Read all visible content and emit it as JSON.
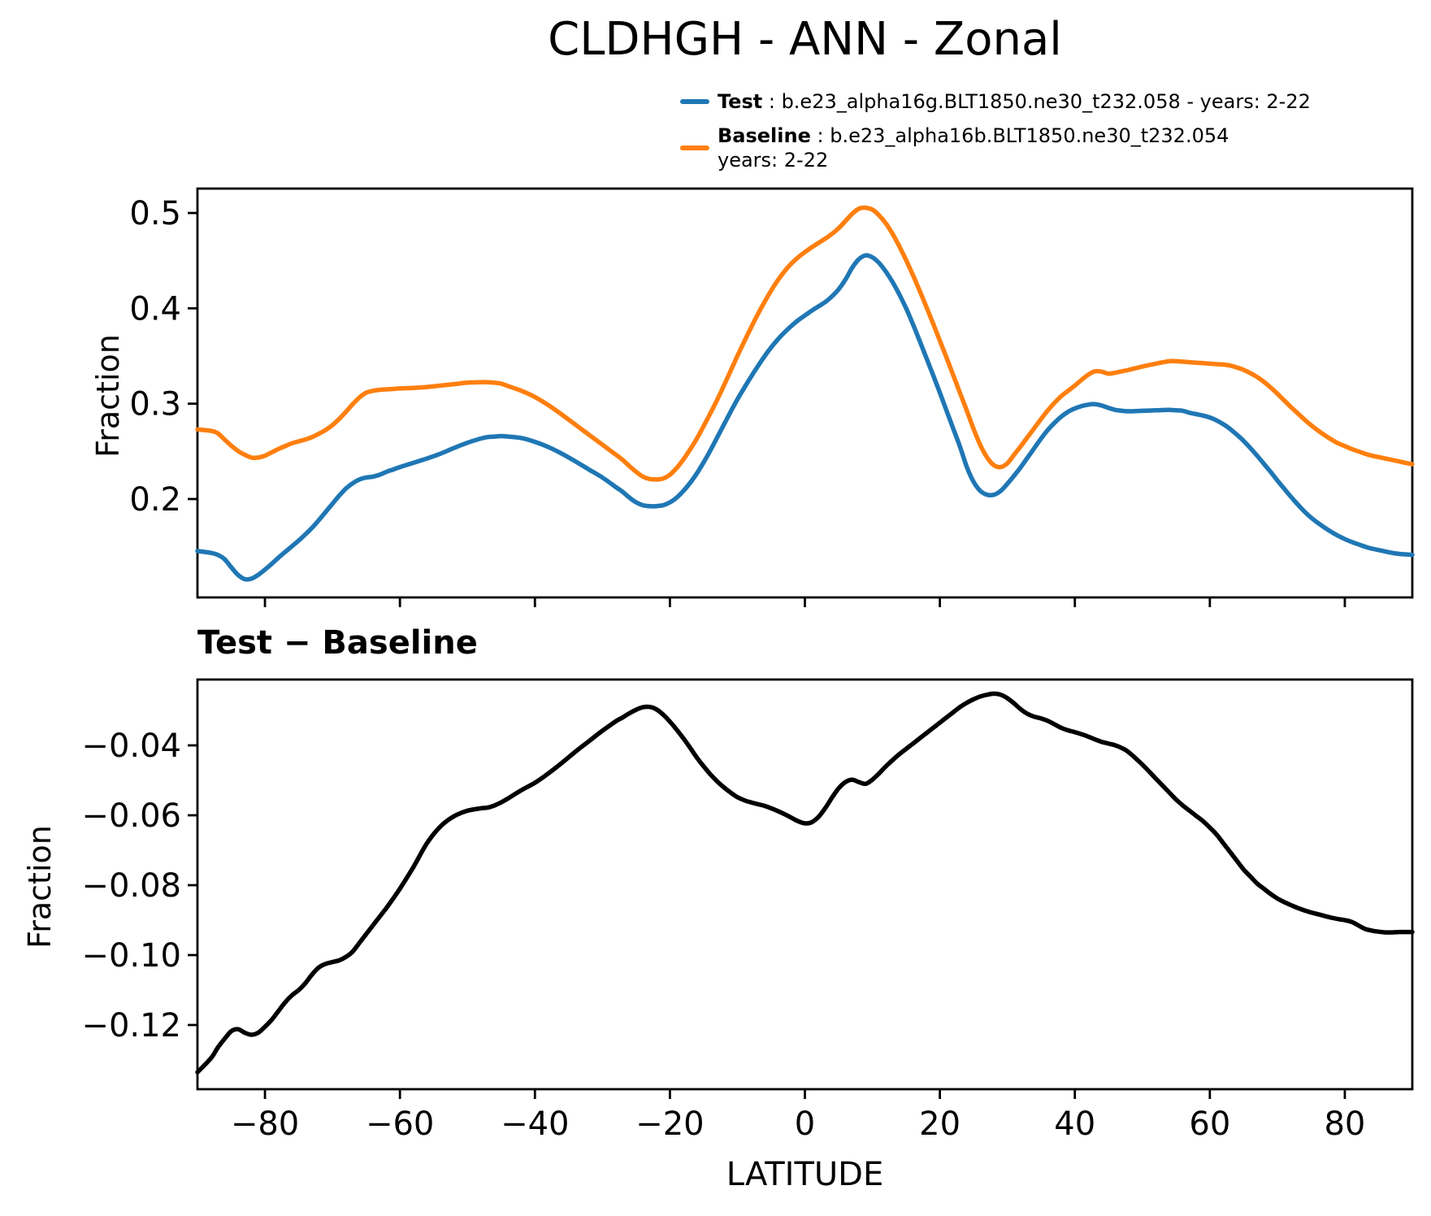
{
  "title": "CLDHGH - ANN - Zonal",
  "legend": {
    "items": [
      {
        "label": "Test",
        "desc": " : b.e23_alpha16g.BLT1850.ne30_t232.058 - years: 2-22",
        "desc2": "",
        "color": "#1f77b4"
      },
      {
        "label": "Baseline",
        "desc": " : b.e23_alpha16b.BLT1850.ne30_t232.054",
        "desc2": "years: 2-22",
        "color": "#ff7f0e"
      }
    ]
  },
  "chart_data": [
    {
      "type": "line",
      "title": "CLDHGH - ANN - Zonal",
      "xlabel": "",
      "ylabel": "Fraction",
      "xlim": [
        -90,
        90
      ],
      "ylim": [
        0.0968,
        0.5256
      ],
      "grid": false,
      "legend_position": "above-right-outside",
      "xtick_values": [
        -80,
        -60,
        -40,
        -20,
        0,
        20,
        40,
        60,
        80
      ],
      "xtick_labels": [
        "−80",
        "−60",
        "−40",
        "−20",
        "0",
        "20",
        "40",
        "60",
        "80"
      ],
      "xtick_labels_shown": false,
      "ytick_values": [
        0.5,
        0.4,
        0.3,
        0.2
      ],
      "ytick_labels": [
        "0.5",
        "0.4",
        "0.3",
        "0.2"
      ],
      "x": [
        -90,
        -88,
        -87,
        -86,
        -85,
        -84,
        -83,
        -82,
        -81,
        -80,
        -79,
        -78,
        -77,
        -76,
        -75,
        -74,
        -73,
        -72,
        -71,
        -70,
        -69,
        -68,
        -67,
        -66,
        -65,
        -64,
        -63,
        -62,
        -61,
        -60,
        -58,
        -56,
        -54,
        -52,
        -50,
        -48,
        -47,
        -46,
        -45,
        -44,
        -42,
        -40,
        -38,
        -36,
        -34,
        -32,
        -30,
        -28,
        -27,
        -26,
        -25,
        -24,
        -23,
        -22,
        -21,
        -20,
        -19,
        -18,
        -17,
        -16,
        -15,
        -14,
        -13,
        -12,
        -11,
        -10,
        -9,
        -8,
        -7,
        -6,
        -5,
        -4,
        -3,
        -2,
        -1,
        0,
        1,
        2,
        3,
        4,
        5,
        6,
        7,
        8,
        9,
        10,
        11,
        12,
        13,
        14,
        15,
        16,
        17,
        18,
        19,
        20,
        21,
        22,
        23,
        24,
        25,
        26,
        27,
        28,
        29,
        30,
        31,
        32,
        33,
        34,
        35,
        36,
        37,
        38,
        39,
        40,
        41,
        42,
        43,
        44,
        45,
        46,
        47,
        48,
        50,
        52,
        54,
        55,
        56,
        57,
        58,
        59,
        60,
        61,
        62,
        63,
        64,
        65,
        66,
        67,
        68,
        69,
        70,
        71,
        72,
        73,
        74,
        75,
        76,
        77,
        78,
        79,
        80,
        81,
        82,
        83,
        84,
        85,
        86,
        87,
        88,
        89,
        90
      ],
      "series": [
        {
          "name": "Test",
          "color": "#1f77b4",
          "values": [
            0.1455,
            0.1435,
            0.1415,
            0.137,
            0.1285,
            0.1205,
            0.116,
            0.1165,
            0.1205,
            0.126,
            0.132,
            0.1385,
            0.1445,
            0.1505,
            0.1565,
            0.163,
            0.17,
            0.178,
            0.1865,
            0.195,
            0.2035,
            0.211,
            0.2165,
            0.2205,
            0.2225,
            0.2235,
            0.2255,
            0.2285,
            0.231,
            0.2335,
            0.238,
            0.2425,
            0.2475,
            0.2535,
            0.259,
            0.2635,
            0.265,
            0.2655,
            0.266,
            0.2655,
            0.264,
            0.26,
            0.2545,
            0.2475,
            0.2395,
            0.231,
            0.2225,
            0.2125,
            0.2075,
            0.2015,
            0.1965,
            0.1935,
            0.1925,
            0.1925,
            0.1935,
            0.1965,
            0.2015,
            0.2085,
            0.217,
            0.227,
            0.2385,
            0.251,
            0.2645,
            0.278,
            0.2915,
            0.3045,
            0.3165,
            0.328,
            0.339,
            0.3495,
            0.359,
            0.3675,
            0.375,
            0.3815,
            0.3875,
            0.3925,
            0.3975,
            0.402,
            0.4065,
            0.4125,
            0.42,
            0.43,
            0.4425,
            0.4515,
            0.4555,
            0.4535,
            0.4475,
            0.4385,
            0.4275,
            0.4145,
            0.4,
            0.3835,
            0.366,
            0.348,
            0.33,
            0.3115,
            0.2925,
            0.2735,
            0.2545,
            0.2335,
            0.218,
            0.2085,
            0.2045,
            0.2045,
            0.2085,
            0.216,
            0.2245,
            0.2335,
            0.2435,
            0.2535,
            0.2635,
            0.2725,
            0.28,
            0.2865,
            0.2915,
            0.295,
            0.2975,
            0.299,
            0.2995,
            0.298,
            0.2955,
            0.2935,
            0.2925,
            0.292,
            0.2925,
            0.293,
            0.2935,
            0.293,
            0.2925,
            0.2905,
            0.289,
            0.2875,
            0.2855,
            0.2825,
            0.2785,
            0.2735,
            0.2675,
            0.261,
            0.2535,
            0.2455,
            0.237,
            0.2285,
            0.2195,
            0.211,
            0.2025,
            0.1945,
            0.187,
            0.1805,
            0.175,
            0.17,
            0.1655,
            0.1615,
            0.158,
            0.155,
            0.1525,
            0.15,
            0.148,
            0.1465,
            0.145,
            0.1435,
            0.1425,
            0.142,
            0.1415
          ]
        },
        {
          "name": "Baseline",
          "color": "#ff7f0e",
          "values": [
            0.273,
            0.2715,
            0.269,
            0.2625,
            0.256,
            0.2505,
            0.2465,
            0.2435,
            0.2435,
            0.2455,
            0.249,
            0.2525,
            0.2555,
            0.2585,
            0.2605,
            0.2625,
            0.265,
            0.2685,
            0.2725,
            0.2775,
            0.284,
            0.2915,
            0.2995,
            0.3065,
            0.3115,
            0.3135,
            0.3145,
            0.315,
            0.3155,
            0.316,
            0.3165,
            0.3175,
            0.319,
            0.3205,
            0.322,
            0.3225,
            0.3225,
            0.322,
            0.321,
            0.3185,
            0.3135,
            0.307,
            0.2985,
            0.2885,
            0.278,
            0.2675,
            0.257,
            0.2465,
            0.241,
            0.2345,
            0.2285,
            0.2235,
            0.221,
            0.2205,
            0.2215,
            0.2255,
            0.2325,
            0.2415,
            0.252,
            0.2635,
            0.2765,
            0.29,
            0.304,
            0.319,
            0.3345,
            0.35,
            0.365,
            0.3795,
            0.3935,
            0.4065,
            0.4185,
            0.4295,
            0.439,
            0.447,
            0.4535,
            0.459,
            0.464,
            0.4685,
            0.473,
            0.478,
            0.484,
            0.4915,
            0.499,
            0.5045,
            0.5055,
            0.5035,
            0.4975,
            0.489,
            0.478,
            0.465,
            0.4505,
            0.435,
            0.4185,
            0.4015,
            0.384,
            0.366,
            0.348,
            0.3295,
            0.311,
            0.2925,
            0.2735,
            0.2565,
            0.2435,
            0.2355,
            0.2335,
            0.2375,
            0.2465,
            0.2555,
            0.265,
            0.2745,
            0.284,
            0.293,
            0.301,
            0.308,
            0.3135,
            0.319,
            0.325,
            0.3305,
            0.334,
            0.3335,
            0.3315,
            0.3325,
            0.334,
            0.3355,
            0.339,
            0.342,
            0.3445,
            0.3445,
            0.344,
            0.3435,
            0.343,
            0.3425,
            0.342,
            0.3415,
            0.341,
            0.34,
            0.338,
            0.3355,
            0.332,
            0.328,
            0.323,
            0.317,
            0.3105,
            0.3035,
            0.2965,
            0.29,
            0.2835,
            0.2775,
            0.272,
            0.267,
            0.2625,
            0.2585,
            0.2555,
            0.2525,
            0.25,
            0.2475,
            0.2455,
            0.244,
            0.2425,
            0.241,
            0.2395,
            0.238,
            0.2365
          ]
        }
      ]
    },
    {
      "type": "line",
      "title": "Test − Baseline",
      "xlabel": "LATITUDE",
      "ylabel": "Fraction",
      "xlim": [
        -90,
        90
      ],
      "ylim": [
        -0.13837,
        -0.02116
      ],
      "grid": false,
      "xtick_values": [
        -80,
        -60,
        -40,
        -20,
        0,
        20,
        40,
        60,
        80
      ],
      "xtick_labels": [
        "−80",
        "−60",
        "−40",
        "−20",
        "0",
        "20",
        "40",
        "60",
        "80"
      ],
      "xtick_labels_shown": true,
      "ytick_values": [
        -0.04,
        -0.06,
        -0.08,
        -0.1,
        -0.12
      ],
      "ytick_labels": [
        "−0.04",
        "−0.06",
        "−0.08",
        "−0.10",
        "−0.12"
      ],
      "x": [
        -90,
        -88,
        -87,
        -86,
        -85,
        -84,
        -83,
        -82,
        -81,
        -80,
        -79,
        -78,
        -77,
        -76,
        -75,
        -74,
        -73,
        -72,
        -71,
        -70,
        -69,
        -68,
        -67,
        -66,
        -65,
        -64,
        -63,
        -62,
        -61,
        -60,
        -58,
        -56,
        -54,
        -52,
        -50,
        -48,
        -47,
        -46,
        -45,
        -44,
        -42,
        -40,
        -38,
        -36,
        -34,
        -32,
        -30,
        -28,
        -27,
        -26,
        -25,
        -24,
        -23,
        -22,
        -21,
        -20,
        -19,
        -18,
        -17,
        -16,
        -15,
        -14,
        -13,
        -12,
        -11,
        -10,
        -9,
        -8,
        -7,
        -6,
        -5,
        -4,
        -3,
        -2,
        -1,
        0,
        1,
        2,
        3,
        4,
        5,
        6,
        7,
        8,
        9,
        10,
        11,
        12,
        13,
        14,
        15,
        16,
        17,
        18,
        19,
        20,
        21,
        22,
        23,
        24,
        25,
        26,
        27,
        28,
        29,
        30,
        31,
        32,
        33,
        34,
        35,
        36,
        37,
        38,
        39,
        40,
        41,
        42,
        43,
        44,
        45,
        46,
        47,
        48,
        50,
        52,
        54,
        55,
        56,
        57,
        58,
        59,
        60,
        61,
        62,
        63,
        64,
        65,
        66,
        67,
        68,
        69,
        70,
        71,
        72,
        73,
        74,
        75,
        76,
        77,
        78,
        79,
        80,
        81,
        82,
        83,
        84,
        85,
        86,
        87,
        88,
        89,
        90
      ],
      "series": [
        {
          "name": "Test - Baseline",
          "color": "#000000",
          "values": [
            -0.1335,
            -0.1295,
            -0.1265,
            -0.124,
            -0.1218,
            -0.1212,
            -0.1222,
            -0.1228,
            -0.1222,
            -0.1205,
            -0.1185,
            -0.116,
            -0.1135,
            -0.1115,
            -0.11,
            -0.108,
            -0.1055,
            -0.1035,
            -0.1025,
            -0.102,
            -0.1015,
            -0.1005,
            -0.099,
            -0.0965,
            -0.094,
            -0.0915,
            -0.089,
            -0.0865,
            -0.0838,
            -0.081,
            -0.0748,
            -0.068,
            -0.0632,
            -0.0603,
            -0.0587,
            -0.058,
            -0.0578,
            -0.0572,
            -0.0563,
            -0.0552,
            -0.0528,
            -0.0507,
            -0.048,
            -0.045,
            -0.0418,
            -0.0388,
            -0.0358,
            -0.0331,
            -0.032,
            -0.0308,
            -0.0298,
            -0.0291,
            -0.029,
            -0.0297,
            -0.0312,
            -0.0332,
            -0.0355,
            -0.038,
            -0.0407,
            -0.0435,
            -0.046,
            -0.0483,
            -0.0503,
            -0.052,
            -0.0535,
            -0.0548,
            -0.0557,
            -0.0563,
            -0.0568,
            -0.0573,
            -0.058,
            -0.0588,
            -0.0597,
            -0.0607,
            -0.0617,
            -0.0623,
            -0.062,
            -0.0605,
            -0.058,
            -0.055,
            -0.0523,
            -0.0505,
            -0.0498,
            -0.0505,
            -0.051,
            -0.0498,
            -0.048,
            -0.046,
            -0.0442,
            -0.0425,
            -0.041,
            -0.0395,
            -0.038,
            -0.0365,
            -0.035,
            -0.0335,
            -0.032,
            -0.0305,
            -0.029,
            -0.0278,
            -0.0268,
            -0.026,
            -0.0255,
            -0.0252,
            -0.0255,
            -0.0265,
            -0.028,
            -0.0297,
            -0.031,
            -0.0318,
            -0.0323,
            -0.033,
            -0.034,
            -0.035,
            -0.0357,
            -0.0362,
            -0.0368,
            -0.0375,
            -0.0383,
            -0.039,
            -0.0395,
            -0.04,
            -0.0408,
            -0.042,
            -0.0455,
            -0.0495,
            -0.0535,
            -0.0555,
            -0.0572,
            -0.0587,
            -0.0602,
            -0.0617,
            -0.0635,
            -0.0655,
            -0.068,
            -0.0705,
            -0.073,
            -0.0755,
            -0.0775,
            -0.0795,
            -0.081,
            -0.0825,
            -0.0838,
            -0.0848,
            -0.0857,
            -0.0865,
            -0.0872,
            -0.0878,
            -0.0883,
            -0.0888,
            -0.0893,
            -0.0897,
            -0.09,
            -0.0905,
            -0.0915,
            -0.0925,
            -0.093,
            -0.0933,
            -0.0935,
            -0.0935,
            -0.0934,
            -0.0934,
            -0.0934
          ]
        }
      ]
    }
  ]
}
